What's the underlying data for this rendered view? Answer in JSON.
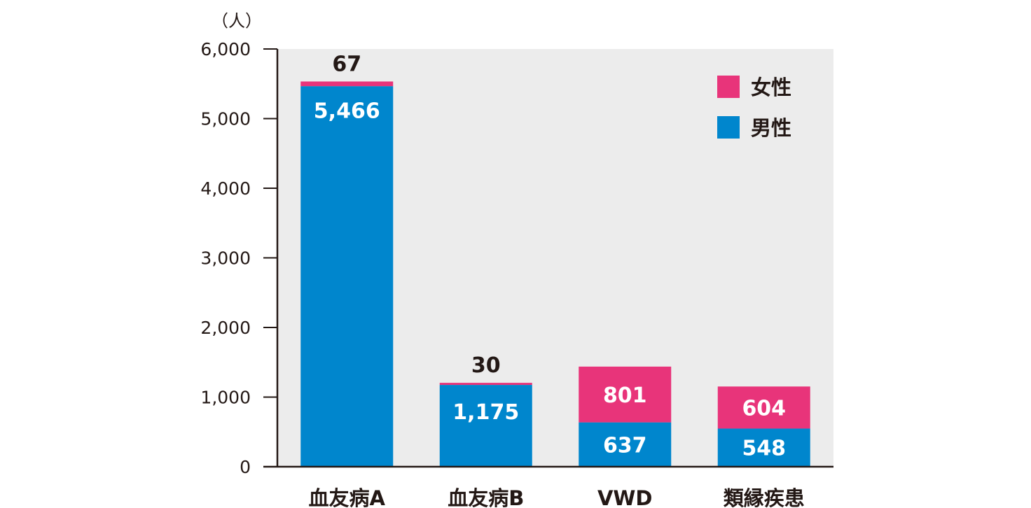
{
  "chart_data": {
    "type": "bar",
    "stacked": true,
    "unit_label": "（人）",
    "categories": [
      "血友病A",
      "血友病B",
      "VWD",
      "類縁疾患"
    ],
    "series": [
      {
        "name": "男性",
        "color": "#0086cd",
        "values": [
          5466,
          1175,
          637,
          548
        ]
      },
      {
        "name": "女性",
        "color": "#e8347a",
        "values": [
          67,
          30,
          801,
          604
        ]
      }
    ],
    "ylim": [
      0,
      6000
    ],
    "yticks": [
      0,
      1000,
      2000,
      3000,
      4000,
      5000,
      6000
    ],
    "ytick_labels": [
      "0",
      "1,000",
      "2,000",
      "3,000",
      "4,000",
      "5,000",
      "6,000"
    ],
    "bar_labels": [
      {
        "male": "5,466",
        "female": "67"
      },
      {
        "male": "1,175",
        "female": "30"
      },
      {
        "male": "637",
        "female": "801"
      },
      {
        "male": "548",
        "female": "604"
      }
    ],
    "legend_order": [
      1,
      0
    ],
    "legend_position": "top-right",
    "plot_background": "#ececec",
    "grid": false
  }
}
